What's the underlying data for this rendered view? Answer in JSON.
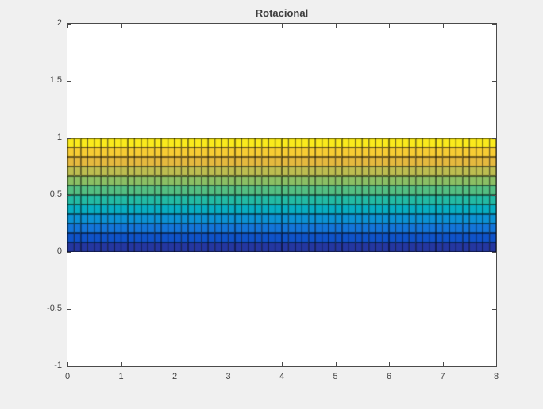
{
  "figure": {
    "title": "Rotacional",
    "background_color": "#f0f0f0",
    "plot_background_color": "#ffffff",
    "axes_line_color": "#4a4a4a",
    "tick_label_color": "#424242",
    "title_color": "#3d3d3d"
  },
  "axes": {
    "xlim": [
      0,
      8
    ],
    "ylim": [
      -1,
      2
    ],
    "x_tick_values": [
      0,
      1,
      2,
      3,
      4,
      5,
      6,
      7,
      8
    ],
    "x_tick_labels": [
      "0",
      "1",
      "2",
      "3",
      "4",
      "5",
      "6",
      "7",
      "8"
    ],
    "y_tick_values": [
      -1,
      -0.5,
      0,
      0.5,
      1,
      1.5,
      2
    ],
    "y_tick_labels": [
      "-1",
      "-0.5",
      "0",
      "0.5",
      "1",
      "1.5",
      "2"
    ]
  },
  "chart_data": {
    "type": "heatmap",
    "title": "Rotacional",
    "xlabel": "",
    "ylabel": "",
    "xlim": [
      0,
      8
    ],
    "ylim": [
      -1,
      2
    ],
    "grid": false,
    "legend": null,
    "mesh": {
      "x_range": [
        0,
        8
      ],
      "y_range": [
        0,
        1
      ],
      "n_cols": 64,
      "n_rows": 12,
      "value_min": 0,
      "value_max": 1,
      "row_values": [
        0.042,
        0.125,
        0.208,
        0.292,
        0.375,
        0.458,
        0.542,
        0.625,
        0.708,
        0.792,
        0.875,
        0.958
      ],
      "description": "Uniform rectangular band from y=0 to y=1 spanning x=0 to x=8; cell color varies only with y, increasing linearly from 0 at the bottom edge (dark blue) to 1 at the top edge (yellow); constant along x.",
      "cell_edge_color": "#000000"
    },
    "colormap": {
      "name": "parula",
      "stops": [
        "#352a87",
        "#0d49c4",
        "#1472d9",
        "#0b95d4",
        "#07b6bc",
        "#38bd93",
        "#7bbf6a",
        "#b9bd52",
        "#e9b93c",
        "#fbd230",
        "#f9fb0e"
      ]
    }
  }
}
